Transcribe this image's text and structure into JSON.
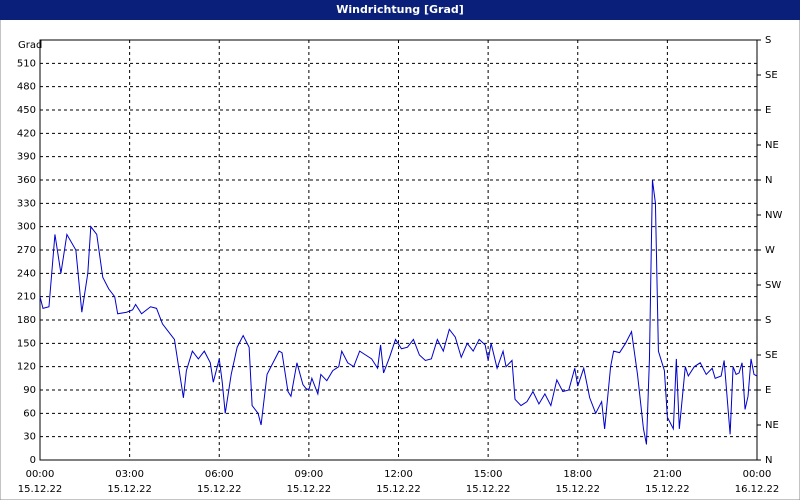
{
  "chart_data": {
    "type": "line",
    "title": "Windrichtung [Grad]",
    "y_label": "Grad",
    "x": [
      0.0,
      0.1,
      0.3,
      0.5,
      0.7,
      0.9,
      1.2,
      1.4,
      1.6,
      1.7,
      1.9,
      2.1,
      2.3,
      2.5,
      2.6,
      2.9,
      3.1,
      3.2,
      3.4,
      3.7,
      3.9,
      4.1,
      4.3,
      4.5,
      4.6,
      4.8,
      4.9,
      5.1,
      5.3,
      5.5,
      5.7,
      5.8,
      6.0,
      6.1,
      6.2,
      6.4,
      6.6,
      6.8,
      7.0,
      7.1,
      7.3,
      7.4,
      7.6,
      7.8,
      8.0,
      8.1,
      8.3,
      8.4,
      8.6,
      8.8,
      8.9,
      9.0,
      9.1,
      9.3,
      9.4,
      9.6,
      9.8,
      10.0,
      10.1,
      10.3,
      10.5,
      10.7,
      10.9,
      11.1,
      11.3,
      11.4,
      11.5,
      11.7,
      11.9,
      12.1,
      12.3,
      12.5,
      12.7,
      12.9,
      13.1,
      13.3,
      13.5,
      13.7,
      13.9,
      14.1,
      14.3,
      14.5,
      14.7,
      14.9,
      15.0,
      15.1,
      15.3,
      15.5,
      15.6,
      15.8,
      15.9,
      16.1,
      16.3,
      16.5,
      16.7,
      16.9,
      17.1,
      17.3,
      17.5,
      17.7,
      17.9,
      18.0,
      18.2,
      18.4,
      18.6,
      18.8,
      18.9,
      19.1,
      19.2,
      19.4,
      19.6,
      19.8,
      20.0,
      20.2,
      20.3,
      20.4,
      20.5,
      20.6,
      20.7,
      20.9,
      21.0,
      21.2,
      21.3,
      21.4,
      21.6,
      21.7,
      21.9,
      22.1,
      22.3,
      22.5,
      22.6,
      22.8,
      22.9,
      23.1,
      23.2,
      23.3,
      23.4,
      23.5,
      23.6,
      23.7,
      23.8,
      23.9,
      24.0
    ],
    "series": [
      {
        "name": "Windrichtung",
        "color": "#0000cc",
        "values": [
          210,
          195,
          197,
          290,
          240,
          290,
          270,
          190,
          240,
          300,
          290,
          235,
          220,
          210,
          188,
          190,
          193,
          200,
          188,
          197,
          195,
          175,
          165,
          155,
          130,
          80,
          115,
          140,
          130,
          140,
          125,
          100,
          130,
          100,
          60,
          110,
          145,
          160,
          145,
          70,
          60,
          45,
          110,
          125,
          140,
          138,
          88,
          82,
          125,
          97,
          92,
          90,
          105,
          85,
          110,
          102,
          115,
          120,
          140,
          125,
          120,
          140,
          135,
          130,
          118,
          148,
          112,
          132,
          155,
          143,
          145,
          155,
          135,
          128,
          130,
          155,
          140,
          168,
          158,
          132,
          150,
          140,
          155,
          148,
          128,
          150,
          118,
          140,
          120,
          128,
          78,
          70,
          75,
          88,
          72,
          85,
          70,
          103,
          88,
          90,
          118,
          95,
          118,
          80,
          60,
          75,
          40,
          120,
          140,
          138,
          150,
          165,
          110,
          40,
          20,
          130,
          360,
          330,
          140,
          115,
          55,
          40,
          130,
          40,
          120,
          108,
          120,
          125,
          110,
          118,
          105,
          108,
          128,
          33,
          120,
          110,
          112,
          125,
          65,
          82,
          130,
          110,
          108
        ]
      }
    ],
    "xlim": [
      0,
      24
    ],
    "xticks": [
      {
        "value": 0,
        "label": "00:00",
        "date": "15.12.22"
      },
      {
        "value": 3,
        "label": "03:00",
        "date": "15.12.22"
      },
      {
        "value": 6,
        "label": "06:00",
        "date": "15.12.22"
      },
      {
        "value": 9,
        "label": "09:00",
        "date": "15.12.22"
      },
      {
        "value": 12,
        "label": "12:00",
        "date": "15.12.22"
      },
      {
        "value": 15,
        "label": "15:00",
        "date": "15.12.22"
      },
      {
        "value": 18,
        "label": "18:00",
        "date": "15.12.22"
      },
      {
        "value": 21,
        "label": "21:00",
        "date": "15.12.22"
      },
      {
        "value": 24,
        "label": "00:00",
        "date": "16.12.22"
      }
    ],
    "ylim": [
      0,
      540
    ],
    "yticks": [
      0,
      30,
      60,
      90,
      120,
      150,
      180,
      210,
      240,
      270,
      300,
      330,
      360,
      390,
      420,
      450,
      480,
      510
    ],
    "y2lim": [
      0,
      540
    ],
    "y2ticks": [
      {
        "value": 0,
        "label": "N"
      },
      {
        "value": 45,
        "label": "NE"
      },
      {
        "value": 90,
        "label": "E"
      },
      {
        "value": 135,
        "label": "SE"
      },
      {
        "value": 180,
        "label": "S"
      },
      {
        "value": 225,
        "label": "SW"
      },
      {
        "value": 270,
        "label": "W"
      },
      {
        "value": 315,
        "label": "NW"
      },
      {
        "value": 360,
        "label": "N"
      },
      {
        "value": 405,
        "label": "NE"
      },
      {
        "value": 450,
        "label": "E"
      },
      {
        "value": 495,
        "label": "SE"
      },
      {
        "value": 540,
        "label": "S"
      }
    ],
    "grid": true
  }
}
